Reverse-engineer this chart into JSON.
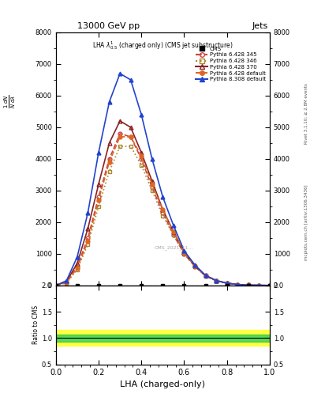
{
  "title_top": "13000 GeV pp",
  "title_right": "Jets",
  "plot_title": "LHA $\\lambda^{1}_{0.5}$ (charged only) (CMS jet substructure)",
  "xlabel": "LHA (charged-only)",
  "ylabel_main": "$\\frac{1}{N}\\frac{dN}{d\\lambda}$",
  "ylabel_ratio": "Ratio to CMS",
  "watermark": "CMS_2021_11...",
  "lha_x": [
    0.0,
    0.05,
    0.1,
    0.15,
    0.2,
    0.25,
    0.3,
    0.35,
    0.4,
    0.45,
    0.5,
    0.55,
    0.6,
    0.65,
    0.7,
    0.75,
    0.8,
    0.85,
    0.9,
    0.95,
    1.0
  ],
  "cms_y": [
    0,
    0,
    0,
    0,
    0,
    0,
    0,
    0,
    0,
    0,
    0,
    0,
    0,
    0,
    0,
    0,
    0,
    0,
    0,
    0,
    0
  ],
  "py6_345_y": [
    0,
    100,
    600,
    1500,
    2800,
    4000,
    4800,
    4700,
    4000,
    3100,
    2300,
    1600,
    1000,
    600,
    300,
    150,
    70,
    30,
    10,
    5,
    0
  ],
  "py6_346_y": [
    0,
    80,
    500,
    1300,
    2500,
    3600,
    4400,
    4400,
    3800,
    3000,
    2200,
    1600,
    1000,
    600,
    300,
    140,
    65,
    28,
    9,
    4,
    0
  ],
  "py6_370_y": [
    0,
    120,
    700,
    1800,
    3200,
    4500,
    5200,
    5000,
    4200,
    3300,
    2400,
    1700,
    1050,
    620,
    310,
    155,
    72,
    31,
    11,
    5,
    0
  ],
  "py6_def_y": [
    0,
    90,
    550,
    1400,
    2700,
    3900,
    4700,
    4700,
    4100,
    3200,
    2400,
    1700,
    1050,
    630,
    310,
    155,
    72,
    31,
    11,
    5,
    0
  ],
  "py8_def_y": [
    0,
    150,
    900,
    2300,
    4200,
    5800,
    6700,
    6500,
    5400,
    4000,
    2800,
    1900,
    1100,
    650,
    320,
    155,
    70,
    30,
    10,
    4,
    0
  ],
  "ratio_green_band": [
    0.93,
    1.07
  ],
  "ratio_yellow_band_lo": [
    0.85,
    0.93
  ],
  "ratio_yellow_band_hi": [
    1.07,
    1.15
  ],
  "ratio_ylim": [
    0.5,
    2.0
  ],
  "ratio_yticks": [
    0.5,
    1.0,
    1.5,
    2.0
  ],
  "color_cms": "black",
  "color_py6_345": "#cc4444",
  "color_py6_346": "#aa8833",
  "color_py6_370": "#882222",
  "color_py6_def": "#dd6622",
  "color_py8_def": "#2244cc",
  "ylim_main": [
    0,
    8000
  ],
  "yticks_main": [
    0,
    1000,
    2000,
    3000,
    4000,
    5000,
    6000,
    7000,
    8000
  ],
  "xlim": [
    0,
    1.0
  ]
}
